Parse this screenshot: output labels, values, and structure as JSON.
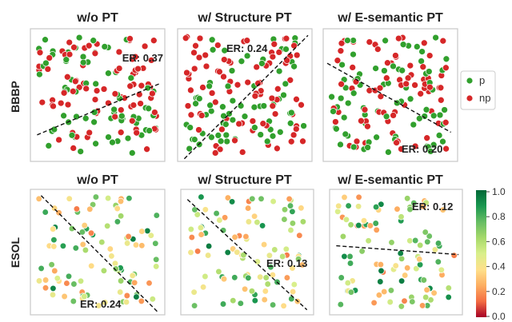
{
  "chart_data": [
    {
      "type": "scatter",
      "row": "BBBP",
      "title": "w/o PT",
      "er_text": "ER: 0.37",
      "er_corner": "top-right",
      "boundary": [
        [
          0.05,
          0.8
        ],
        [
          0.97,
          0.41
        ]
      ],
      "legend": [
        {
          "label": "p",
          "color": "#31a02d"
        },
        {
          "label": "np",
          "color": "#d62728"
        }
      ]
    },
    {
      "type": "scatter",
      "row": "BBBP",
      "title": "w/ Structure PT",
      "er_text": "ER: 0.24",
      "er_corner": "top-center",
      "boundary": [
        [
          0.05,
          0.98
        ],
        [
          0.97,
          0.05
        ]
      ]
    },
    {
      "type": "scatter",
      "row": "BBBP",
      "title": "w/ E-semantic PT",
      "er_text": "ER: 0.20",
      "er_corner": "bottom-right",
      "boundary": [
        [
          0.03,
          0.26
        ],
        [
          0.95,
          0.78
        ]
      ]
    },
    {
      "type": "scatter",
      "row": "ESOL",
      "title": "w/o PT",
      "er_text": "ER: 0.24",
      "er_corner": "bottom-center",
      "boundary": [
        [
          0.08,
          0.05
        ],
        [
          0.95,
          0.98
        ]
      ]
    },
    {
      "type": "scatter",
      "row": "ESOL",
      "title": "w/ Structure PT",
      "er_text": "ER: 0.13",
      "er_corner": "mid-right",
      "boundary": [
        [
          0.05,
          0.08
        ],
        [
          0.95,
          0.96
        ]
      ]
    },
    {
      "type": "scatter",
      "row": "ESOL",
      "title": "w/ E-semantic PT",
      "er_text": "ER: 0.12",
      "er_corner": "top-right",
      "boundary": [
        [
          0.05,
          0.45
        ],
        [
          0.97,
          0.52
        ]
      ]
    }
  ],
  "row_labels": [
    "BBBP",
    "ESOL"
  ],
  "colorbar": {
    "ticks": [
      "1.0",
      "0.8",
      "0.6",
      "0.4",
      "0.2",
      "0.0"
    ],
    "range": [
      0,
      1
    ],
    "stops": [
      "#a50026",
      "#f46d43",
      "#fdae61",
      "#fee08b",
      "#d9ef8b",
      "#a6d96a",
      "#66bd63",
      "#1a9850",
      "#006837"
    ]
  }
}
